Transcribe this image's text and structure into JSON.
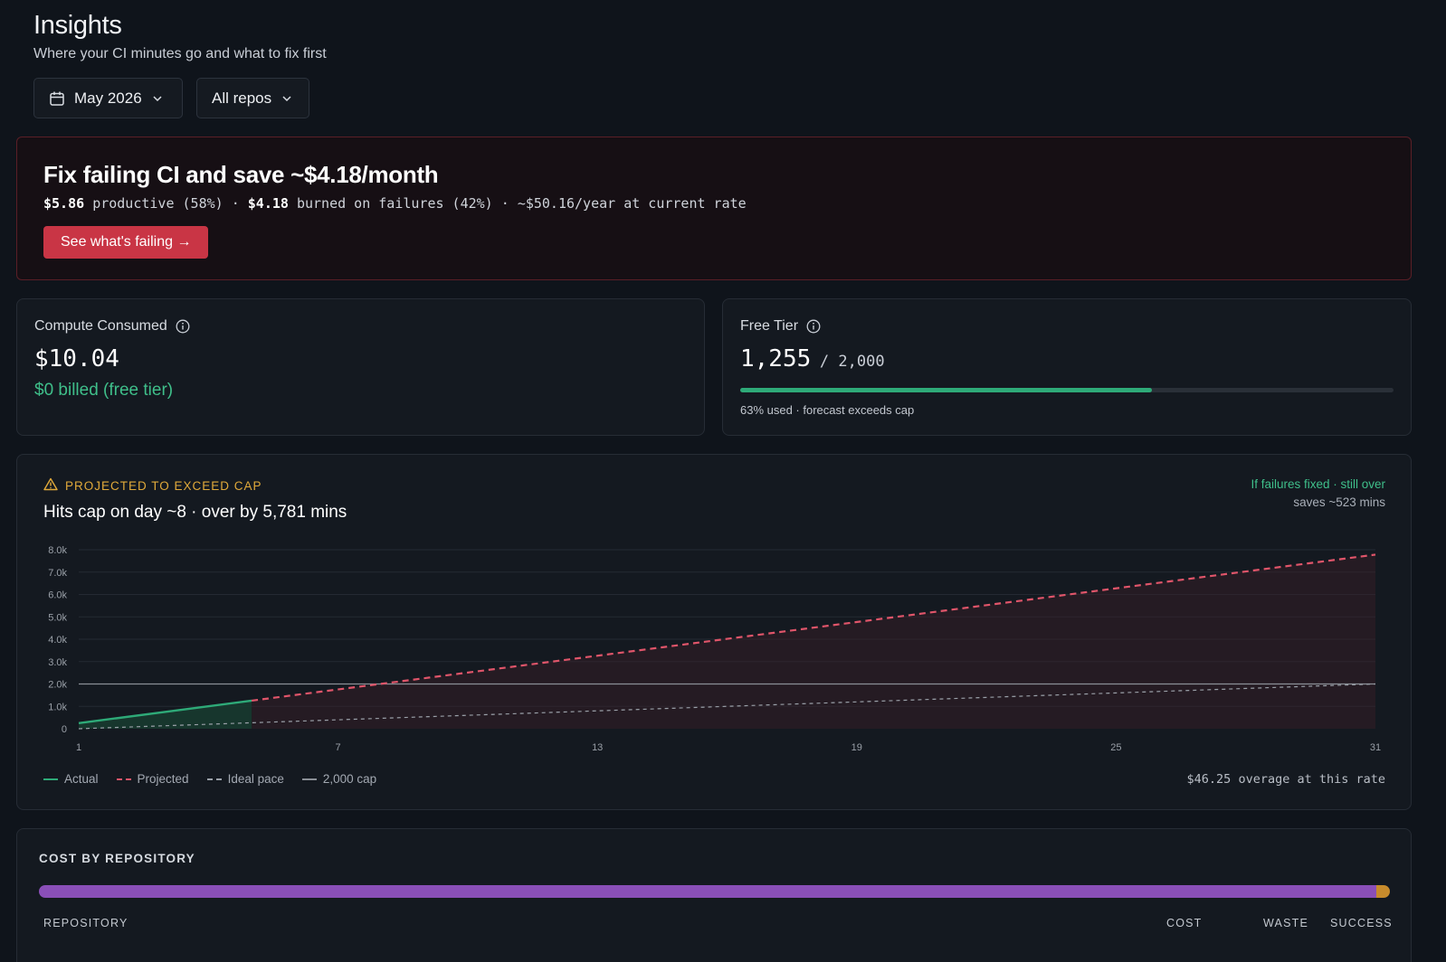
{
  "header": {
    "title": "Insights",
    "subtitle": "Where your CI minutes go and what to fix first"
  },
  "filters": {
    "month": "May 2026",
    "repos": "All repos"
  },
  "alert": {
    "title": "Fix failing CI and save ~$4.18/month",
    "productive_amount": "$5.86",
    "productive_text": "productive (58%)",
    "burned_amount": "$4.18",
    "burned_text": "burned on failures (42%)",
    "year_text": "~$50.16/year at current rate",
    "separator": "·",
    "button_label": "See what's failing →",
    "colors": {
      "accent": "#c93545",
      "border": "#5a1f27"
    }
  },
  "compute": {
    "label": "Compute Consumed",
    "value": "$10.04",
    "billed": "$0 billed (free tier)"
  },
  "free_tier": {
    "label": "Free Tier",
    "used": "1,255",
    "cap": "/ 2,000",
    "used_fraction": 0.63,
    "note": "63% used · forecast exceeds cap"
  },
  "projection": {
    "tag": "PROJECTED TO EXCEED CAP",
    "title": "Hits cap on day ~8 · over by 5,781 mins",
    "right_line1": "If failures fixed · still over",
    "right_line2": "saves ~523 mins",
    "overage": "$46.25 overage at this rate",
    "legend": [
      {
        "label": "Actual",
        "color": "#2eaa78",
        "style": "solid"
      },
      {
        "label": "Projected",
        "color": "#e0556a",
        "style": "dashed"
      },
      {
        "label": "Ideal pace",
        "color": "#9aa0a8",
        "style": "dashed"
      },
      {
        "label": "2,000 cap",
        "color": "#8a8f96",
        "style": "solid"
      }
    ]
  },
  "chart_data": {
    "type": "line",
    "title": "",
    "xlabel": "",
    "ylabel": "",
    "xlim": [
      1,
      31
    ],
    "ylim": [
      0,
      8000
    ],
    "x_ticks": [
      "1",
      "7",
      "13",
      "19",
      "25",
      "31"
    ],
    "y_ticks": [
      "0",
      "1.0k",
      "2.0k",
      "3.0k",
      "4.0k",
      "5.0k",
      "6.0k",
      "7.0k",
      "8.0k"
    ],
    "grid": true,
    "series": [
      {
        "name": "Actual",
        "x": [
          1,
          5
        ],
        "y": [
          250,
          1255
        ]
      },
      {
        "name": "Projected",
        "x": [
          5,
          31
        ],
        "y": [
          1255,
          7781
        ]
      },
      {
        "name": "Ideal pace",
        "x": [
          1,
          31
        ],
        "y": [
          0,
          2000
        ]
      },
      {
        "name": "2,000 cap",
        "x": [
          1,
          31
        ],
        "y": [
          2000,
          2000
        ]
      }
    ]
  },
  "repos": {
    "title": "COST BY REPOSITORY",
    "columns": [
      "REPOSITORY",
      "COST",
      "WASTE",
      "SUCCESS"
    ],
    "shares": [
      {
        "fraction": 0.99,
        "color": "#8a4fb8"
      },
      {
        "fraction": 0.01,
        "color": "#c78b2c"
      }
    ]
  }
}
